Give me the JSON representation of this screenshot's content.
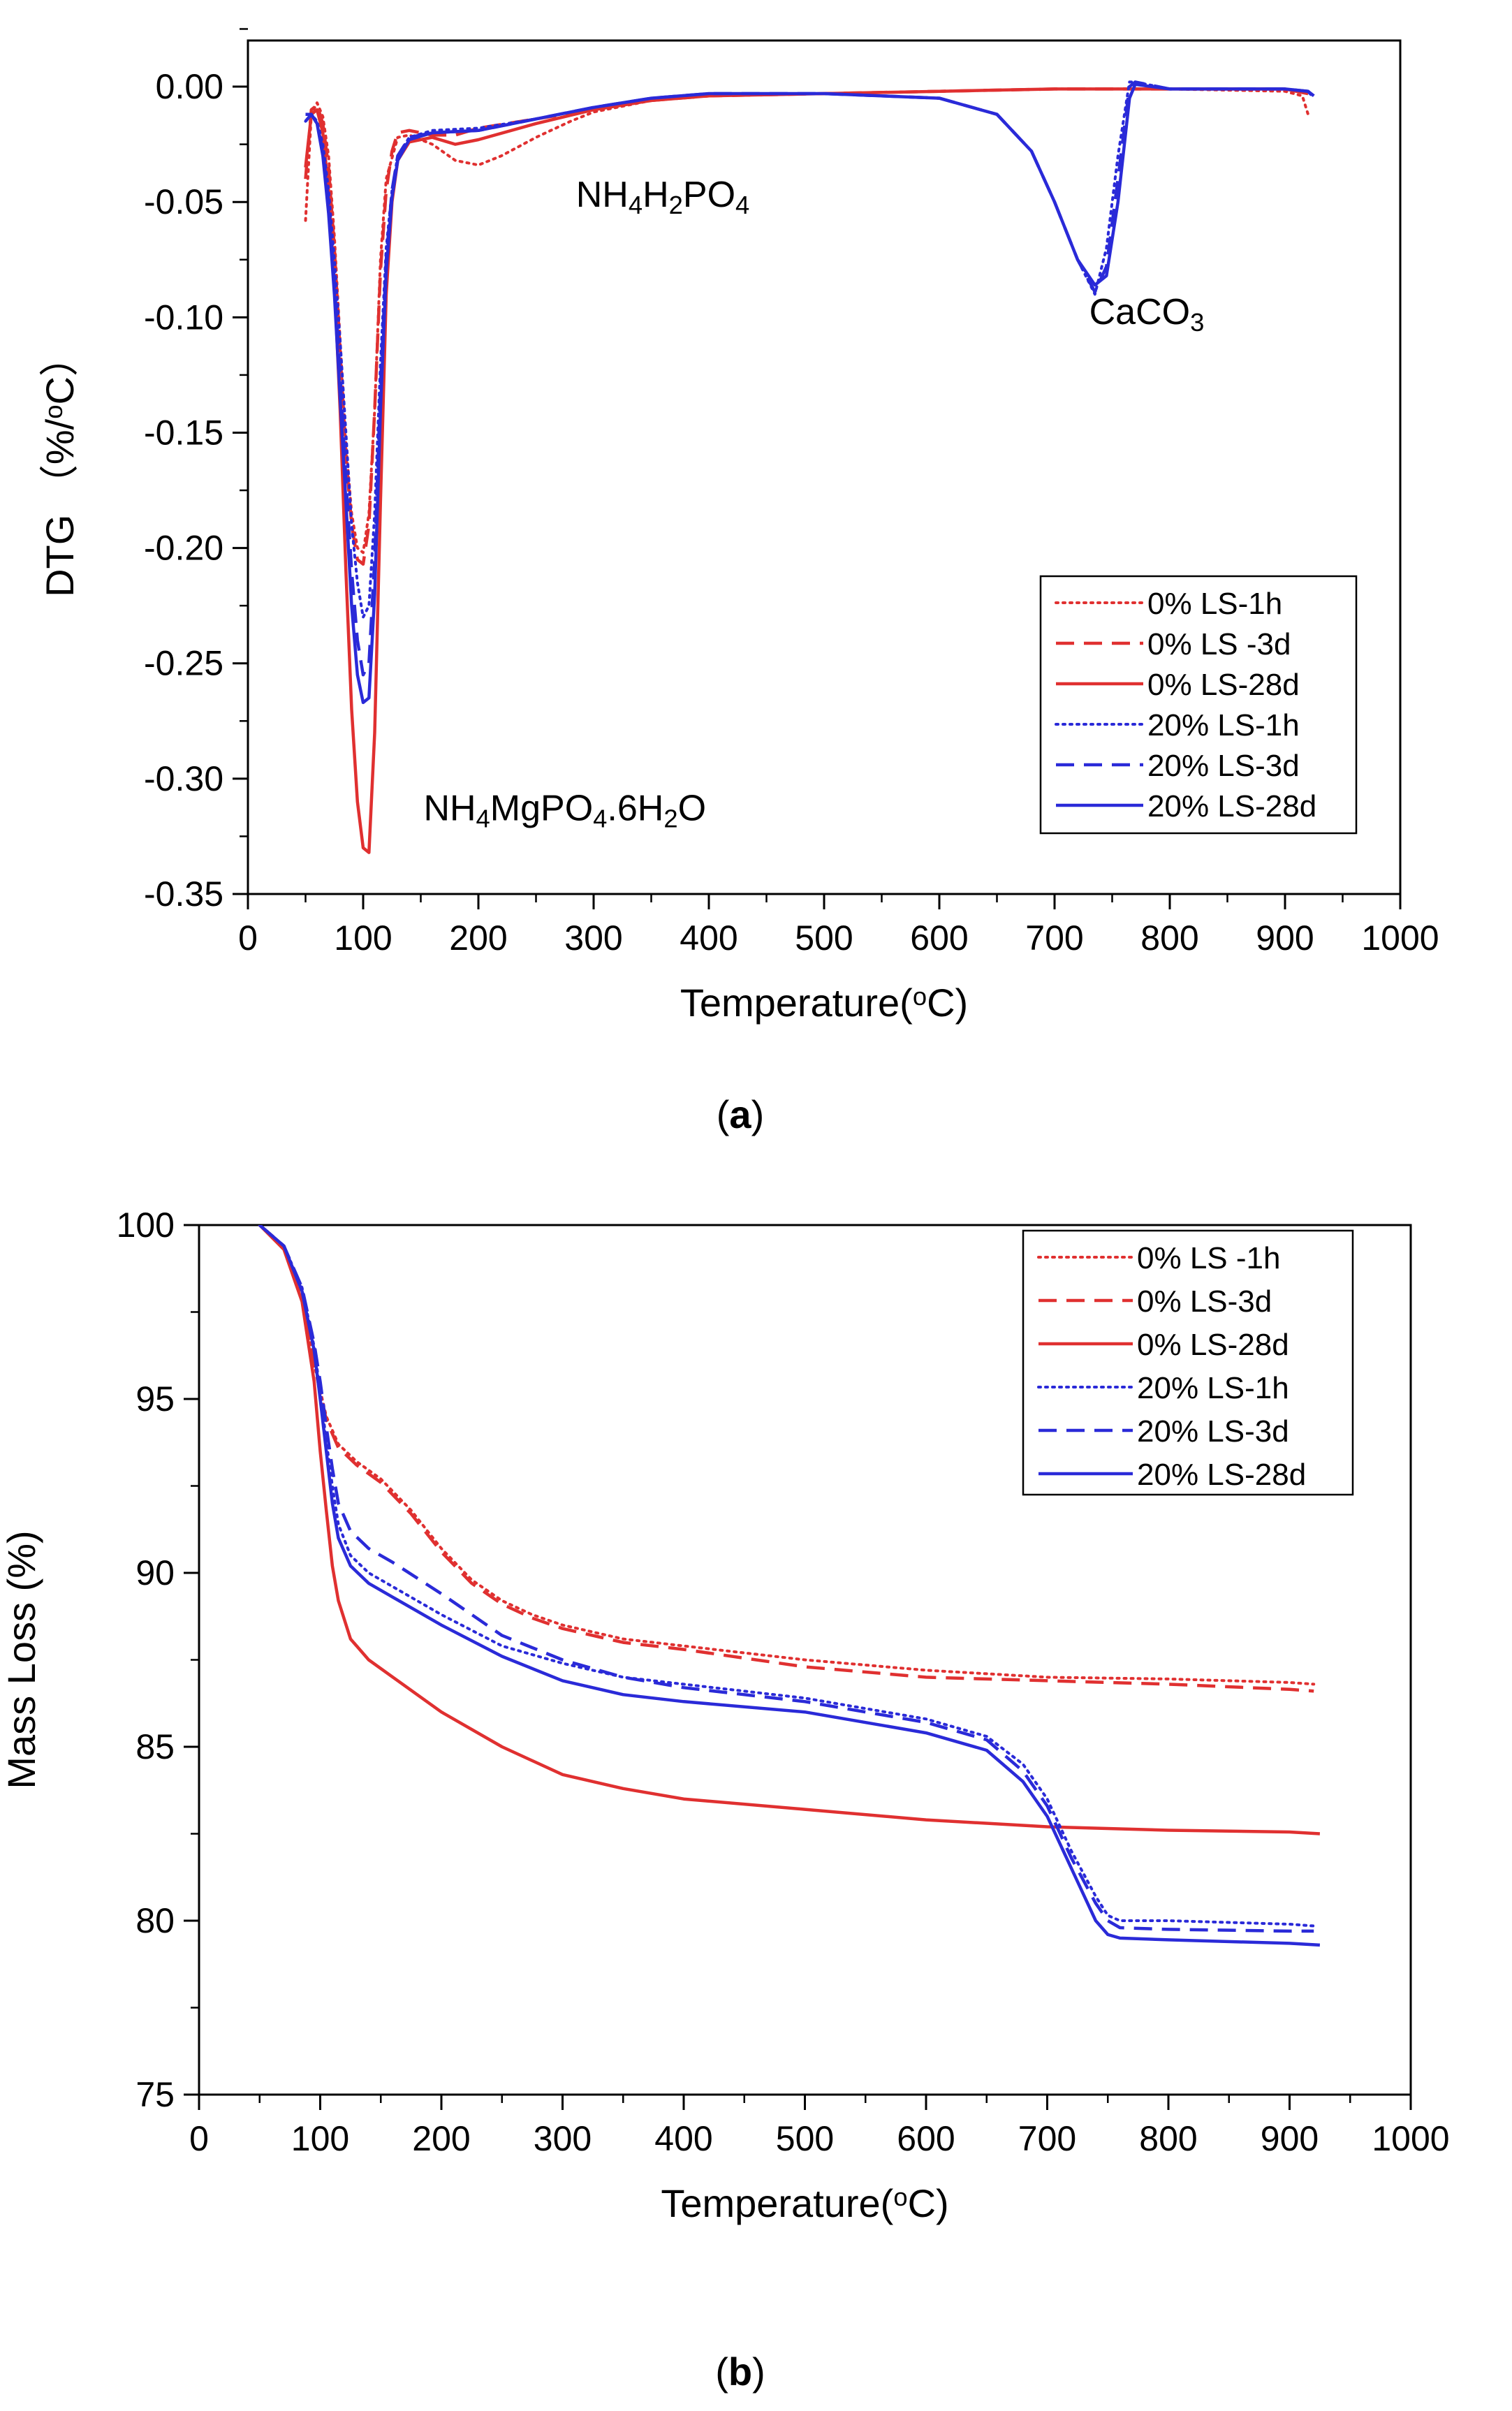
{
  "chart_data": [
    {
      "id": "a",
      "type": "line",
      "caption_letter": "a",
      "title": "",
      "xlabel": "Temperature(°C)",
      "ylabel": "DTG （%/°C）",
      "xlim": [
        0,
        1000
      ],
      "ylim": [
        -0.35,
        0.02
      ],
      "xticks": [
        0,
        100,
        200,
        300,
        400,
        500,
        600,
        700,
        800,
        900,
        1000
      ],
      "yticks": [
        0.0,
        -0.05,
        -0.1,
        -0.15,
        -0.2,
        -0.25,
        -0.3,
        -0.35
      ],
      "ytick_labels": [
        "0.00",
        "-0.05",
        "-0.10",
        "-0.15",
        "-0.20",
        "-0.25",
        "-0.30",
        "-0.35"
      ],
      "legend_position": "lower-right",
      "annotations": [
        {
          "text": "NH₄H₂PO₄",
          "x": 360,
          "y": -0.052
        },
        {
          "text": "CaCO₃",
          "x": 780,
          "y": -0.103
        },
        {
          "text": "NH₄MgPO₄.6H₂O",
          "x": 275,
          "y": -0.318
        }
      ],
      "series": [
        {
          "name": "0% LS-1h",
          "color": "#e03030",
          "dash": "dot",
          "x": [
            50,
            55,
            60,
            65,
            70,
            75,
            80,
            85,
            90,
            95,
            100,
            105,
            110,
            115,
            120,
            130,
            140,
            160,
            180,
            200,
            220,
            250,
            280,
            300,
            350,
            400,
            500,
            600,
            700,
            800,
            900,
            915,
            920
          ],
          "y": [
            -0.058,
            -0.012,
            -0.007,
            -0.013,
            -0.03,
            -0.065,
            -0.11,
            -0.155,
            -0.185,
            -0.2,
            -0.202,
            -0.185,
            -0.14,
            -0.075,
            -0.04,
            -0.022,
            -0.021,
            -0.025,
            -0.032,
            -0.034,
            -0.03,
            -0.022,
            -0.015,
            -0.011,
            -0.006,
            -0.004,
            -0.003,
            -0.002,
            -0.001,
            -0.001,
            -0.002,
            -0.004,
            -0.012
          ]
        },
        {
          "name": "0% LS -3d",
          "color": "#e03030",
          "dash": "dash",
          "x": [
            50,
            55,
            60,
            65,
            70,
            75,
            80,
            85,
            90,
            95,
            100,
            105,
            110,
            115,
            120,
            125,
            130,
            140,
            160,
            180,
            200,
            250,
            300,
            350,
            400,
            500,
            600,
            700,
            800,
            900,
            920
          ],
          "y": [
            -0.04,
            -0.01,
            -0.008,
            -0.016,
            -0.035,
            -0.07,
            -0.115,
            -0.16,
            -0.19,
            -0.205,
            -0.207,
            -0.19,
            -0.14,
            -0.08,
            -0.045,
            -0.028,
            -0.02,
            -0.019,
            -0.021,
            -0.021,
            -0.018,
            -0.014,
            -0.01,
            -0.006,
            -0.004,
            -0.003,
            -0.002,
            -0.001,
            -0.001,
            -0.001,
            -0.003
          ]
        },
        {
          "name": "0% LS-28d",
          "color": "#e03030",
          "dash": "solid",
          "x": [
            50,
            55,
            60,
            65,
            70,
            75,
            80,
            85,
            90,
            95,
            100,
            105,
            110,
            115,
            120,
            125,
            130,
            140,
            160,
            180,
            200,
            250,
            300,
            350,
            400,
            500,
            600,
            700,
            800,
            900,
            920
          ],
          "y": [
            -0.035,
            -0.012,
            -0.01,
            -0.02,
            -0.045,
            -0.085,
            -0.14,
            -0.21,
            -0.27,
            -0.31,
            -0.33,
            -0.332,
            -0.28,
            -0.18,
            -0.09,
            -0.05,
            -0.032,
            -0.024,
            -0.022,
            -0.025,
            -0.023,
            -0.016,
            -0.01,
            -0.006,
            -0.004,
            -0.003,
            -0.002,
            -0.001,
            -0.001,
            -0.001,
            -0.003
          ]
        },
        {
          "name": "20% LS-1h",
          "color": "#2a2ad8",
          "dash": "dot",
          "x": [
            50,
            55,
            60,
            65,
            70,
            75,
            80,
            85,
            90,
            95,
            100,
            105,
            110,
            115,
            120,
            125,
            130,
            140,
            160,
            200,
            250,
            300,
            350,
            400,
            500,
            600,
            650,
            680,
            700,
            720,
            735,
            745,
            755,
            765,
            770,
            800,
            850,
            900,
            920,
            925
          ],
          "y": [
            -0.015,
            -0.012,
            -0.015,
            -0.025,
            -0.045,
            -0.075,
            -0.11,
            -0.15,
            -0.19,
            -0.215,
            -0.23,
            -0.225,
            -0.185,
            -0.12,
            -0.07,
            -0.045,
            -0.03,
            -0.022,
            -0.019,
            -0.018,
            -0.014,
            -0.009,
            -0.005,
            -0.003,
            -0.003,
            -0.005,
            -0.012,
            -0.028,
            -0.05,
            -0.075,
            -0.09,
            -0.07,
            -0.03,
            0.002,
            0.002,
            -0.001,
            -0.001,
            -0.001,
            -0.002,
            -0.005
          ]
        },
        {
          "name": "20% LS-3d",
          "color": "#2a2ad8",
          "dash": "dash",
          "x": [
            50,
            55,
            60,
            65,
            70,
            75,
            80,
            85,
            90,
            95,
            100,
            105,
            110,
            115,
            120,
            125,
            130,
            140,
            160,
            200,
            250,
            300,
            350,
            400,
            500,
            600,
            650,
            680,
            700,
            720,
            735,
            745,
            755,
            765,
            770,
            800,
            850,
            900,
            920,
            925
          ],
          "y": [
            -0.015,
            -0.012,
            -0.016,
            -0.028,
            -0.05,
            -0.085,
            -0.125,
            -0.17,
            -0.21,
            -0.24,
            -0.255,
            -0.25,
            -0.205,
            -0.13,
            -0.075,
            -0.045,
            -0.03,
            -0.022,
            -0.02,
            -0.019,
            -0.014,
            -0.009,
            -0.005,
            -0.003,
            -0.003,
            -0.005,
            -0.012,
            -0.028,
            -0.05,
            -0.075,
            -0.089,
            -0.078,
            -0.04,
            0.0,
            0.002,
            -0.001,
            -0.001,
            -0.001,
            -0.002,
            -0.005
          ]
        },
        {
          "name": "20% LS-28d",
          "color": "#2a2ad8",
          "dash": "solid",
          "x": [
            50,
            55,
            60,
            65,
            70,
            75,
            80,
            85,
            90,
            95,
            100,
            105,
            110,
            115,
            120,
            125,
            130,
            140,
            160,
            200,
            250,
            300,
            350,
            400,
            500,
            600,
            650,
            680,
            700,
            720,
            735,
            745,
            755,
            765,
            770,
            800,
            850,
            900,
            920,
            925
          ],
          "y": [
            -0.012,
            -0.012,
            -0.016,
            -0.03,
            -0.055,
            -0.09,
            -0.135,
            -0.18,
            -0.225,
            -0.255,
            -0.267,
            -0.265,
            -0.22,
            -0.14,
            -0.08,
            -0.048,
            -0.032,
            -0.023,
            -0.02,
            -0.019,
            -0.014,
            -0.009,
            -0.005,
            -0.003,
            -0.003,
            -0.005,
            -0.012,
            -0.028,
            -0.05,
            -0.075,
            -0.086,
            -0.082,
            -0.05,
            -0.005,
            0.001,
            -0.001,
            -0.001,
            -0.001,
            -0.002,
            -0.004
          ]
        }
      ]
    },
    {
      "id": "b",
      "type": "line",
      "caption_letter": "b",
      "title": "",
      "xlabel": "Temperature(°C)",
      "ylabel": "Mass Loss (%)",
      "xlim": [
        0,
        1000
      ],
      "ylim": [
        75,
        100
      ],
      "xticks": [
        0,
        100,
        200,
        300,
        400,
        500,
        600,
        700,
        800,
        900,
        1000
      ],
      "yticks": [
        75,
        80,
        85,
        90,
        95,
        100
      ],
      "ytick_labels": [
        "75",
        "80",
        "85",
        "90",
        "95",
        "100"
      ],
      "legend_position": "top-right",
      "annotations": [],
      "series": [
        {
          "name": "0% LS -1h",
          "color": "#e03030",
          "dash": "dot",
          "x": [
            50,
            70,
            85,
            95,
            105,
            115,
            130,
            150,
            175,
            200,
            225,
            250,
            275,
            300,
            350,
            400,
            500,
            600,
            700,
            800,
            900,
            920
          ],
          "y": [
            100,
            99.4,
            98.0,
            96.0,
            94.5,
            93.7,
            93.2,
            92.7,
            91.8,
            90.7,
            89.8,
            89.2,
            88.8,
            88.5,
            88.1,
            87.9,
            87.5,
            87.2,
            87.0,
            86.95,
            86.85,
            86.8
          ]
        },
        {
          "name": "0% LS-3d",
          "color": "#e03030",
          "dash": "dash",
          "x": [
            50,
            70,
            85,
            95,
            105,
            115,
            130,
            150,
            175,
            200,
            225,
            250,
            275,
            300,
            350,
            400,
            500,
            600,
            700,
            800,
            900,
            920
          ],
          "y": [
            100,
            99.4,
            98.0,
            96.0,
            94.4,
            93.6,
            93.1,
            92.6,
            91.7,
            90.6,
            89.7,
            89.1,
            88.7,
            88.4,
            88.0,
            87.8,
            87.3,
            87.0,
            86.9,
            86.8,
            86.65,
            86.6
          ]
        },
        {
          "name": "0% LS-28d",
          "color": "#e03030",
          "dash": "solid",
          "x": [
            50,
            70,
            85,
            95,
            100,
            105,
            110,
            115,
            125,
            140,
            160,
            180,
            200,
            250,
            300,
            350,
            400,
            500,
            600,
            700,
            800,
            900,
            925
          ],
          "y": [
            100,
            99.3,
            97.8,
            95.5,
            93.5,
            91.8,
            90.2,
            89.2,
            88.1,
            87.5,
            87.0,
            86.5,
            86.0,
            85.0,
            84.2,
            83.8,
            83.5,
            83.2,
            82.9,
            82.7,
            82.6,
            82.55,
            82.5
          ]
        },
        {
          "name": "20% LS-1h",
          "color": "#2a2ad8",
          "dash": "dot",
          "x": [
            50,
            70,
            85,
            95,
            100,
            105,
            110,
            115,
            125,
            140,
            160,
            200,
            250,
            300,
            350,
            400,
            500,
            600,
            650,
            680,
            700,
            720,
            740,
            750,
            760,
            800,
            900,
            920
          ],
          "y": [
            100,
            99.4,
            98.2,
            96.5,
            95.2,
            93.8,
            92.5,
            91.4,
            90.5,
            90.0,
            89.6,
            88.8,
            87.9,
            87.4,
            87.0,
            86.8,
            86.4,
            85.8,
            85.3,
            84.5,
            83.5,
            82.0,
            80.7,
            80.15,
            80.0,
            80.0,
            79.9,
            79.85
          ]
        },
        {
          "name": "20% LS-3d",
          "color": "#2a2ad8",
          "dash": "dash",
          "x": [
            50,
            70,
            85,
            95,
            100,
            105,
            110,
            115,
            125,
            140,
            160,
            200,
            250,
            300,
            350,
            400,
            500,
            600,
            650,
            680,
            700,
            720,
            740,
            750,
            760,
            800,
            900,
            920
          ],
          "y": [
            100,
            99.4,
            98.2,
            96.6,
            95.5,
            94.2,
            93.0,
            92.0,
            91.2,
            90.7,
            90.3,
            89.4,
            88.2,
            87.5,
            87.0,
            86.7,
            86.3,
            85.7,
            85.2,
            84.3,
            83.3,
            81.8,
            80.5,
            80.0,
            79.8,
            79.75,
            79.7,
            79.7
          ]
        },
        {
          "name": "20% LS-28d",
          "color": "#2a2ad8",
          "dash": "solid",
          "x": [
            50,
            70,
            85,
            95,
            100,
            105,
            110,
            115,
            125,
            140,
            160,
            200,
            250,
            300,
            350,
            400,
            500,
            600,
            650,
            680,
            700,
            720,
            740,
            750,
            760,
            800,
            900,
            925
          ],
          "y": [
            100,
            99.4,
            98.1,
            96.4,
            95.0,
            93.5,
            92.0,
            91.0,
            90.2,
            89.7,
            89.3,
            88.5,
            87.6,
            86.9,
            86.5,
            86.3,
            86.0,
            85.4,
            84.9,
            84.0,
            83.0,
            81.5,
            80.0,
            79.6,
            79.5,
            79.45,
            79.35,
            79.3
          ]
        }
      ]
    }
  ]
}
